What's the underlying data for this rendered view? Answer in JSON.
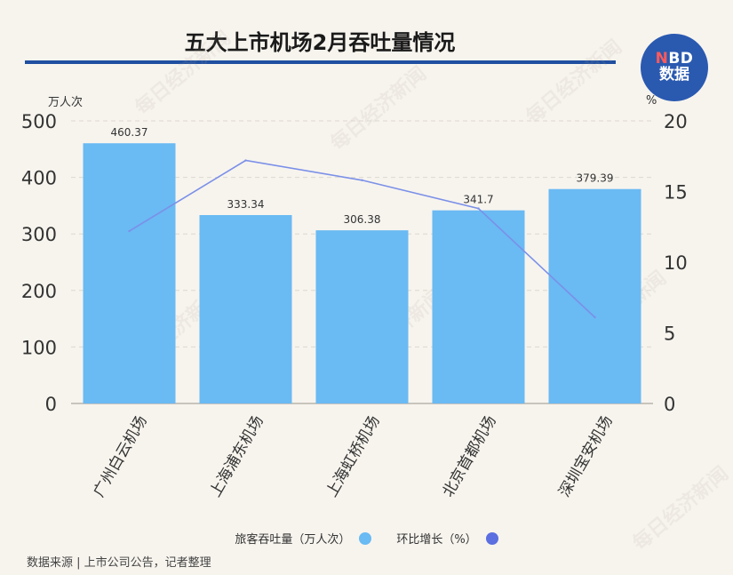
{
  "title": "五大上市机场2月吞吐量情况",
  "logo": {
    "n": "N",
    "bd": "BD",
    "line2": "数据"
  },
  "units": {
    "left": "万人次",
    "right": "%"
  },
  "legend": {
    "bar_label": "旅客吞吐量（万人次）",
    "line_label": "环比增长（%）"
  },
  "source": "数据来源 | 上市公司公告，记者整理",
  "watermark": "每日经济新闻",
  "colors": {
    "bar": "#6abaf3",
    "line": "#7b90e8",
    "line_legend": "#5b6fe0",
    "title_rule": "#1f4fa0",
    "logo": "#2a59b0"
  },
  "chart_data": {
    "type": "bar",
    "title": "五大上市机场2月吞吐量情况",
    "categories": [
      "广州白云机场",
      "上海浦东机场",
      "上海虹桥机场",
      "北京首都机场",
      "深圳宝安机场"
    ],
    "series": [
      {
        "name": "旅客吞吐量（万人次）",
        "type": "bar",
        "axis": "left",
        "values": [
          460.37,
          333.34,
          306.38,
          341.7,
          379.39
        ],
        "labels": [
          "460.37",
          "333.34",
          "306.38",
          "341.7",
          "379.39"
        ]
      },
      {
        "name": "环比增长（%）",
        "type": "line",
        "axis": "right",
        "values": [
          12.2,
          17.2,
          15.8,
          13.8,
          6.1
        ]
      }
    ],
    "ylabel": "万人次",
    "ylim": [
      0,
      500
    ],
    "yticks": [
      0,
      100,
      200,
      300,
      400,
      500
    ],
    "y2label": "%",
    "y2lim": [
      0,
      20
    ],
    "y2ticks": [
      0,
      5,
      10,
      15,
      20
    ],
    "grid": "horizontal dashed",
    "legend_position": "bottom"
  }
}
